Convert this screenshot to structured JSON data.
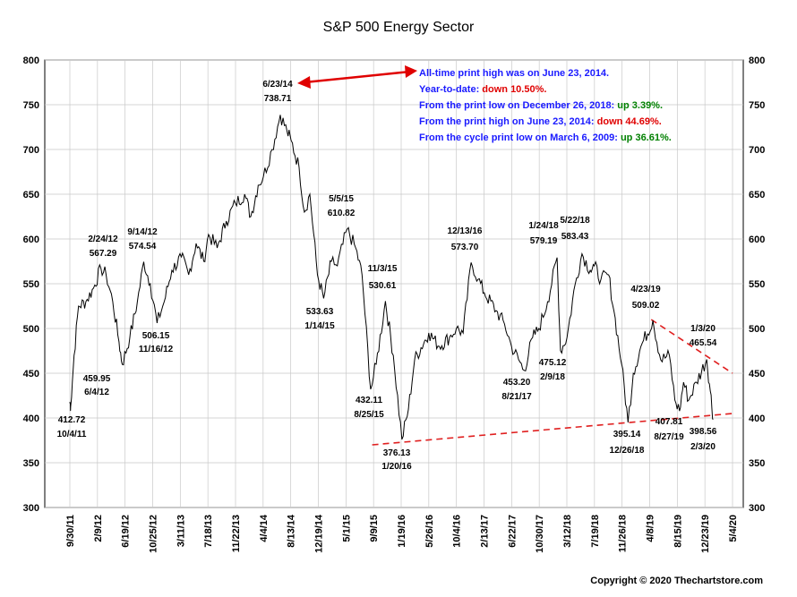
{
  "chart_data": {
    "type": "line",
    "title": "S&P 500 Energy Sector",
    "xlabel": "",
    "ylabel": "",
    "ylim": [
      300,
      800
    ],
    "y_ticks": [
      300,
      350,
      400,
      450,
      500,
      550,
      600,
      650,
      700,
      750,
      800
    ],
    "x_ticks": [
      "9/30/11",
      "2/9/12",
      "6/19/12",
      "10/25/12",
      "3/11/13",
      "7/18/13",
      "11/22/13",
      "4/4/14",
      "8/13/14",
      "12/19/14",
      "5/1/15",
      "9/9/15",
      "1/19/16",
      "5/26/16",
      "10/4/16",
      "2/13/17",
      "6/22/17",
      "10/30/17",
      "3/12/18",
      "7/19/18",
      "11/26/18",
      "4/8/19",
      "8/15/19",
      "12/23/19",
      "5/4/20"
    ],
    "x_range": [
      "2011-09-30",
      "2020-05-04"
    ],
    "grid": true,
    "series": [
      {
        "name": "",
        "color": "#000000",
        "points": [
          [
            "2011-09-30",
            418
          ],
          [
            "2011-10-04",
            412.72
          ],
          [
            "2011-10-20",
            470
          ],
          [
            "2011-11-10",
            525
          ],
          [
            "2011-12-15",
            530
          ],
          [
            "2012-01-20",
            545
          ],
          [
            "2012-02-24",
            567.29
          ],
          [
            "2012-03-20",
            560
          ],
          [
            "2012-04-20",
            530
          ],
          [
            "2012-05-20",
            485
          ],
          [
            "2012-06-04",
            459.95
          ],
          [
            "2012-07-10",
            490
          ],
          [
            "2012-08-15",
            530
          ],
          [
            "2012-09-14",
            574.54
          ],
          [
            "2012-10-15",
            550
          ],
          [
            "2012-11-16",
            506.15
          ],
          [
            "2012-12-20",
            530
          ],
          [
            "2013-01-25",
            565
          ],
          [
            "2013-03-11",
            580
          ],
          [
            "2013-04-15",
            560
          ],
          [
            "2013-05-20",
            595
          ],
          [
            "2013-06-25",
            575
          ],
          [
            "2013-07-18",
            605
          ],
          [
            "2013-08-28",
            590
          ],
          [
            "2013-10-10",
            620
          ],
          [
            "2013-11-22",
            640
          ],
          [
            "2014-01-05",
            650
          ],
          [
            "2014-02-03",
            625
          ],
          [
            "2014-03-10",
            660
          ],
          [
            "2014-04-04",
            670
          ],
          [
            "2014-05-15",
            700
          ],
          [
            "2014-06-23",
            738.71
          ],
          [
            "2014-07-25",
            720
          ],
          [
            "2014-08-13",
            710
          ],
          [
            "2014-09-20",
            680
          ],
          [
            "2014-10-15",
            630
          ],
          [
            "2014-11-10",
            650
          ],
          [
            "2014-12-16",
            560
          ],
          [
            "2015-01-14",
            533.63
          ],
          [
            "2015-02-20",
            575
          ],
          [
            "2015-03-20",
            570
          ],
          [
            "2015-05-05",
            610.82
          ],
          [
            "2015-06-15",
            590
          ],
          [
            "2015-07-15",
            560
          ],
          [
            "2015-08-25",
            432.11
          ],
          [
            "2015-09-20",
            460
          ],
          [
            "2015-11-03",
            530.61
          ],
          [
            "2015-12-10",
            470
          ],
          [
            "2016-01-20",
            376.13
          ],
          [
            "2016-02-20",
            410
          ],
          [
            "2016-03-20",
            465
          ],
          [
            "2016-05-26",
            495
          ],
          [
            "2016-07-15",
            480
          ],
          [
            "2016-09-01",
            490
          ],
          [
            "2016-10-04",
            500
          ],
          [
            "2016-11-05",
            495
          ],
          [
            "2016-12-13",
            573.7
          ],
          [
            "2017-01-15",
            555
          ],
          [
            "2017-02-13",
            540
          ],
          [
            "2017-04-10",
            520
          ],
          [
            "2017-05-20",
            505
          ],
          [
            "2017-06-22",
            480
          ],
          [
            "2017-08-21",
            453.2
          ],
          [
            "2017-09-30",
            490
          ],
          [
            "2017-10-30",
            500
          ],
          [
            "2017-12-10",
            530
          ],
          [
            "2018-01-24",
            579.19
          ],
          [
            "2018-02-09",
            475.12
          ],
          [
            "2018-03-12",
            490
          ],
          [
            "2018-04-20",
            550
          ],
          [
            "2018-05-22",
            583.43
          ],
          [
            "2018-06-30",
            565
          ],
          [
            "2018-07-19",
            570
          ],
          [
            "2018-08-20",
            555
          ],
          [
            "2018-09-25",
            560
          ],
          [
            "2018-10-20",
            520
          ],
          [
            "2018-11-26",
            460
          ],
          [
            "2018-12-26",
            395.14
          ],
          [
            "2019-01-20",
            450
          ],
          [
            "2019-02-25",
            480
          ],
          [
            "2019-04-23",
            509.02
          ],
          [
            "2019-05-30",
            465
          ],
          [
            "2019-07-10",
            470
          ],
          [
            "2019-08-05",
            420
          ],
          [
            "2019-08-27",
            407.81
          ],
          [
            "2019-09-15",
            440
          ],
          [
            "2019-10-10",
            420
          ],
          [
            "2019-11-15",
            440
          ],
          [
            "2020-01-03",
            465.54
          ],
          [
            "2020-01-20",
            430
          ],
          [
            "2020-02-03",
            398.56
          ]
        ]
      }
    ],
    "annotations": [
      {
        "date": "6/23/14",
        "value": "738.71"
      },
      {
        "date": "2/24/12",
        "value": "567.29"
      },
      {
        "date": "9/14/12",
        "value": "574.54"
      },
      {
        "date": "6/4/12",
        "value": "459.95"
      },
      {
        "date": "11/16/12",
        "value": "506.15"
      },
      {
        "date": "10/4/11",
        "value": "412.72"
      },
      {
        "date": "5/5/15",
        "value": "610.82"
      },
      {
        "date": "1/14/15",
        "value": "533.63"
      },
      {
        "date": "11/3/15",
        "value": "530.61"
      },
      {
        "date": "8/25/15",
        "value": "432.11"
      },
      {
        "date": "1/20/16",
        "value": "376.13"
      },
      {
        "date": "12/13/16",
        "value": "573.70"
      },
      {
        "date": "8/21/17",
        "value": "453.20"
      },
      {
        "date": "1/24/18",
        "value": "579.19"
      },
      {
        "date": "5/22/18",
        "value": "583.43"
      },
      {
        "date": "2/9/18",
        "value": "475.12"
      },
      {
        "date": "12/26/18",
        "value": "395.14"
      },
      {
        "date": "4/23/19",
        "value": "509.02"
      },
      {
        "date": "8/27/19",
        "value": "407.81"
      },
      {
        "date": "1/3/20",
        "value": "465.54"
      },
      {
        "date": "2/3/20",
        "value": "398.56"
      }
    ],
    "trendlines": [
      {
        "color": "#e02020",
        "from": [
          "2015-09-01",
          370
        ],
        "to": [
          "2020-05-04",
          405
        ]
      },
      {
        "color": "#e02020",
        "from": [
          "2019-04-15",
          510
        ],
        "to": [
          "2020-05-04",
          450
        ]
      }
    ],
    "info_box": [
      {
        "text": "All-time print high was on June 23, 2014.",
        "highlight": "",
        "highlight_color": ""
      },
      {
        "text": "Year-to-date:  ",
        "highlight": "down 10.50%.",
        "highlight_color": "#e00000"
      },
      {
        "text": "From the print low on December 26, 2018:  ",
        "highlight": "up 3.39%.",
        "highlight_color": "#008000"
      },
      {
        "text": "From the print high on June 23, 2014:  ",
        "highlight": "down 44.69%.",
        "highlight_color": "#e00000"
      },
      {
        "text": "From the cycle print low on March 6, 2009:  ",
        "highlight": "up 36.61%.",
        "highlight_color": "#008000"
      }
    ],
    "colors": {
      "info_text": "#1a1aff",
      "arrow": "#e00000",
      "line": "#000000",
      "grid": "#c8c8c8"
    }
  },
  "copyright": "Copyright © 2020 Thechartstore.com"
}
